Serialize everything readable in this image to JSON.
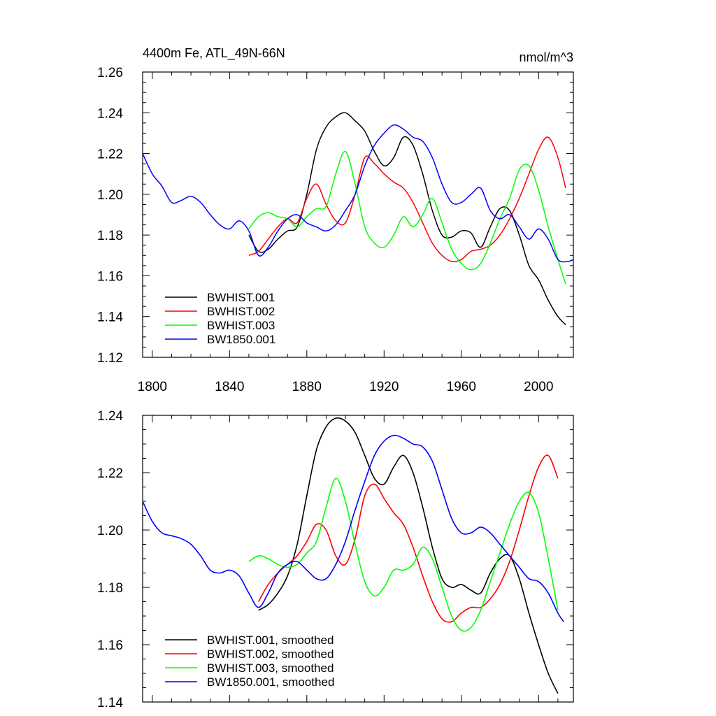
{
  "chart_data": [
    {
      "type": "line",
      "title": "4400m Fe, ATL_49N-66N",
      "units": "nmol/m^3",
      "xlabel": "",
      "ylabel": "",
      "xlim": [
        1795,
        2018
      ],
      "ylim": [
        1.12,
        1.26
      ],
      "xticks": [
        1800,
        1840,
        1880,
        1920,
        1960,
        2000
      ],
      "yticks": [
        1.12,
        1.14,
        1.16,
        1.18,
        1.2,
        1.22,
        1.24,
        1.26
      ],
      "xtick_labels": [
        "1800",
        "1840",
        "1880",
        "1920",
        "1960",
        "2000"
      ],
      "ytick_labels": [
        "1.12",
        "1.14",
        "1.16",
        "1.18",
        "1.20",
        "1.22",
        "1.24",
        "1.26"
      ],
      "legend_position": "bottom-left",
      "series": [
        {
          "name": "BWHIST.001",
          "color": "#000000",
          "x": [
            1850,
            1855,
            1860,
            1865,
            1870,
            1875,
            1880,
            1885,
            1890,
            1895,
            1900,
            1905,
            1910,
            1915,
            1920,
            1925,
            1930,
            1935,
            1940,
            1945,
            1950,
            1955,
            1960,
            1965,
            1970,
            1975,
            1980,
            1985,
            1990,
            1995,
            2000,
            2005,
            2010,
            2014
          ],
          "values": [
            1.18,
            1.172,
            1.173,
            1.178,
            1.182,
            1.184,
            1.2,
            1.222,
            1.233,
            1.238,
            1.24,
            1.236,
            1.231,
            1.221,
            1.214,
            1.218,
            1.228,
            1.224,
            1.21,
            1.192,
            1.18,
            1.179,
            1.182,
            1.181,
            1.174,
            1.184,
            1.193,
            1.192,
            1.18,
            1.165,
            1.158,
            1.148,
            1.14,
            1.136
          ]
        },
        {
          "name": "BWHIST.002",
          "color": "#ff0000",
          "x": [
            1850,
            1855,
            1860,
            1865,
            1870,
            1875,
            1880,
            1885,
            1890,
            1895,
            1900,
            1905,
            1910,
            1915,
            1920,
            1925,
            1930,
            1935,
            1940,
            1945,
            1950,
            1955,
            1960,
            1965,
            1970,
            1975,
            1980,
            1985,
            1990,
            1995,
            2000,
            2005,
            2010,
            2014
          ],
          "values": [
            1.17,
            1.172,
            1.178,
            1.184,
            1.188,
            1.186,
            1.198,
            1.205,
            1.195,
            1.187,
            1.186,
            1.2,
            1.218,
            1.215,
            1.21,
            1.206,
            1.203,
            1.196,
            1.186,
            1.176,
            1.17,
            1.167,
            1.168,
            1.172,
            1.173,
            1.175,
            1.18,
            1.188,
            1.198,
            1.21,
            1.222,
            1.228,
            1.218,
            1.203
          ]
        },
        {
          "name": "BWHIST.003",
          "color": "#00ff00",
          "x": [
            1850,
            1855,
            1860,
            1865,
            1870,
            1875,
            1880,
            1885,
            1890,
            1895,
            1900,
            1905,
            1910,
            1915,
            1920,
            1925,
            1930,
            1935,
            1940,
            1945,
            1950,
            1955,
            1960,
            1965,
            1970,
            1975,
            1980,
            1985,
            1990,
            1995,
            2000,
            2005,
            2010,
            2014
          ],
          "values": [
            1.183,
            1.189,
            1.191,
            1.189,
            1.188,
            1.184,
            1.189,
            1.193,
            1.194,
            1.21,
            1.221,
            1.205,
            1.184,
            1.176,
            1.174,
            1.18,
            1.189,
            1.184,
            1.19,
            1.198,
            1.186,
            1.173,
            1.166,
            1.163,
            1.166,
            1.176,
            1.188,
            1.198,
            1.212,
            1.214,
            1.202,
            1.184,
            1.168,
            1.156
          ]
        },
        {
          "name": "BW1850.001",
          "color": "#0000ff",
          "x": [
            1795,
            1800,
            1805,
            1810,
            1815,
            1820,
            1825,
            1830,
            1835,
            1840,
            1845,
            1850,
            1855,
            1860,
            1865,
            1870,
            1875,
            1880,
            1885,
            1890,
            1895,
            1900,
            1905,
            1910,
            1915,
            1920,
            1925,
            1930,
            1935,
            1940,
            1945,
            1950,
            1955,
            1960,
            1965,
            1970,
            1975,
            1980,
            1985,
            1990,
            1995,
            2000,
            2005,
            2010,
            2015,
            2018
          ],
          "values": [
            1.22,
            1.21,
            1.204,
            1.196,
            1.197,
            1.199,
            1.196,
            1.19,
            1.185,
            1.183,
            1.187,
            1.182,
            1.17,
            1.174,
            1.182,
            1.188,
            1.19,
            1.186,
            1.184,
            1.182,
            1.185,
            1.192,
            1.2,
            1.214,
            1.224,
            1.23,
            1.234,
            1.232,
            1.228,
            1.226,
            1.218,
            1.205,
            1.196,
            1.196,
            1.2,
            1.203,
            1.192,
            1.188,
            1.19,
            1.184,
            1.178,
            1.183,
            1.178,
            1.168,
            1.167,
            1.168
          ]
        }
      ]
    },
    {
      "type": "line",
      "title": "",
      "xlabel": "",
      "ylabel": "",
      "xlim": [
        1795,
        2018
      ],
      "ylim": [
        1.14,
        1.24
      ],
      "xticks": [
        1800,
        1840,
        1880,
        1920,
        1960,
        2000
      ],
      "yticks": [
        1.14,
        1.16,
        1.18,
        1.2,
        1.22,
        1.24
      ],
      "ytick_labels": [
        "1.14",
        "1.16",
        "1.18",
        "1.20",
        "1.22",
        "1.24"
      ],
      "legend_position": "bottom-left",
      "series": [
        {
          "name": "BWHIST.001, smoothed",
          "color": "#000000",
          "x": [
            1855,
            1860,
            1865,
            1870,
            1875,
            1880,
            1885,
            1890,
            1895,
            1900,
            1905,
            1910,
            1915,
            1920,
            1925,
            1930,
            1935,
            1940,
            1945,
            1950,
            1955,
            1960,
            1965,
            1970,
            1975,
            1980,
            1985,
            1990,
            1995,
            2000,
            2005,
            2010
          ],
          "values": [
            1.172,
            1.174,
            1.178,
            1.184,
            1.195,
            1.212,
            1.228,
            1.236,
            1.239,
            1.238,
            1.234,
            1.226,
            1.218,
            1.216,
            1.222,
            1.226,
            1.22,
            1.208,
            1.194,
            1.183,
            1.18,
            1.181,
            1.179,
            1.178,
            1.185,
            1.19,
            1.191,
            1.183,
            1.171,
            1.16,
            1.15,
            1.143
          ]
        },
        {
          "name": "BWHIST.002, smoothed",
          "color": "#ff0000",
          "x": [
            1855,
            1860,
            1865,
            1870,
            1875,
            1880,
            1885,
            1890,
            1895,
            1900,
            1905,
            1910,
            1915,
            1920,
            1925,
            1930,
            1935,
            1940,
            1945,
            1950,
            1955,
            1960,
            1965,
            1970,
            1975,
            1980,
            1985,
            1990,
            1995,
            2000,
            2005,
            2010
          ],
          "values": [
            1.175,
            1.181,
            1.185,
            1.188,
            1.191,
            1.196,
            1.202,
            1.2,
            1.191,
            1.188,
            1.197,
            1.212,
            1.216,
            1.211,
            1.206,
            1.202,
            1.194,
            1.184,
            1.175,
            1.169,
            1.168,
            1.171,
            1.173,
            1.173,
            1.176,
            1.181,
            1.189,
            1.2,
            1.212,
            1.222,
            1.226,
            1.218
          ]
        },
        {
          "name": "BWHIST.003, smoothed",
          "color": "#00ff00",
          "x": [
            1850,
            1855,
            1860,
            1865,
            1870,
            1875,
            1880,
            1885,
            1890,
            1895,
            1900,
            1905,
            1910,
            1915,
            1920,
            1925,
            1930,
            1935,
            1940,
            1945,
            1950,
            1955,
            1960,
            1965,
            1970,
            1975,
            1980,
            1985,
            1990,
            1995,
            2000,
            2005,
            2010
          ],
          "values": [
            1.189,
            1.191,
            1.19,
            1.188,
            1.187,
            1.188,
            1.192,
            1.196,
            1.208,
            1.218,
            1.21,
            1.195,
            1.182,
            1.177,
            1.18,
            1.186,
            1.186,
            1.188,
            1.194,
            1.19,
            1.18,
            1.17,
            1.165,
            1.166,
            1.172,
            1.182,
            1.192,
            1.202,
            1.21,
            1.213,
            1.206,
            1.19,
            1.172
          ]
        },
        {
          "name": "BW1850.001, smoothed",
          "color": "#0000ff",
          "x": [
            1795,
            1800,
            1805,
            1810,
            1815,
            1820,
            1825,
            1830,
            1835,
            1840,
            1845,
            1850,
            1855,
            1860,
            1865,
            1870,
            1875,
            1880,
            1885,
            1890,
            1895,
            1900,
            1905,
            1910,
            1915,
            1920,
            1925,
            1930,
            1935,
            1940,
            1945,
            1950,
            1955,
            1960,
            1965,
            1970,
            1975,
            1980,
            1985,
            1990,
            1995,
            2000,
            2005,
            2010,
            2013
          ],
          "values": [
            1.21,
            1.203,
            1.199,
            1.198,
            1.197,
            1.195,
            1.191,
            1.186,
            1.185,
            1.186,
            1.184,
            1.178,
            1.173,
            1.178,
            1.185,
            1.188,
            1.189,
            1.186,
            1.183,
            1.183,
            1.188,
            1.196,
            1.207,
            1.217,
            1.226,
            1.231,
            1.233,
            1.232,
            1.23,
            1.229,
            1.224,
            1.214,
            1.204,
            1.199,
            1.199,
            1.201,
            1.199,
            1.195,
            1.191,
            1.187,
            1.183,
            1.182,
            1.178,
            1.171,
            1.168
          ]
        }
      ]
    }
  ]
}
